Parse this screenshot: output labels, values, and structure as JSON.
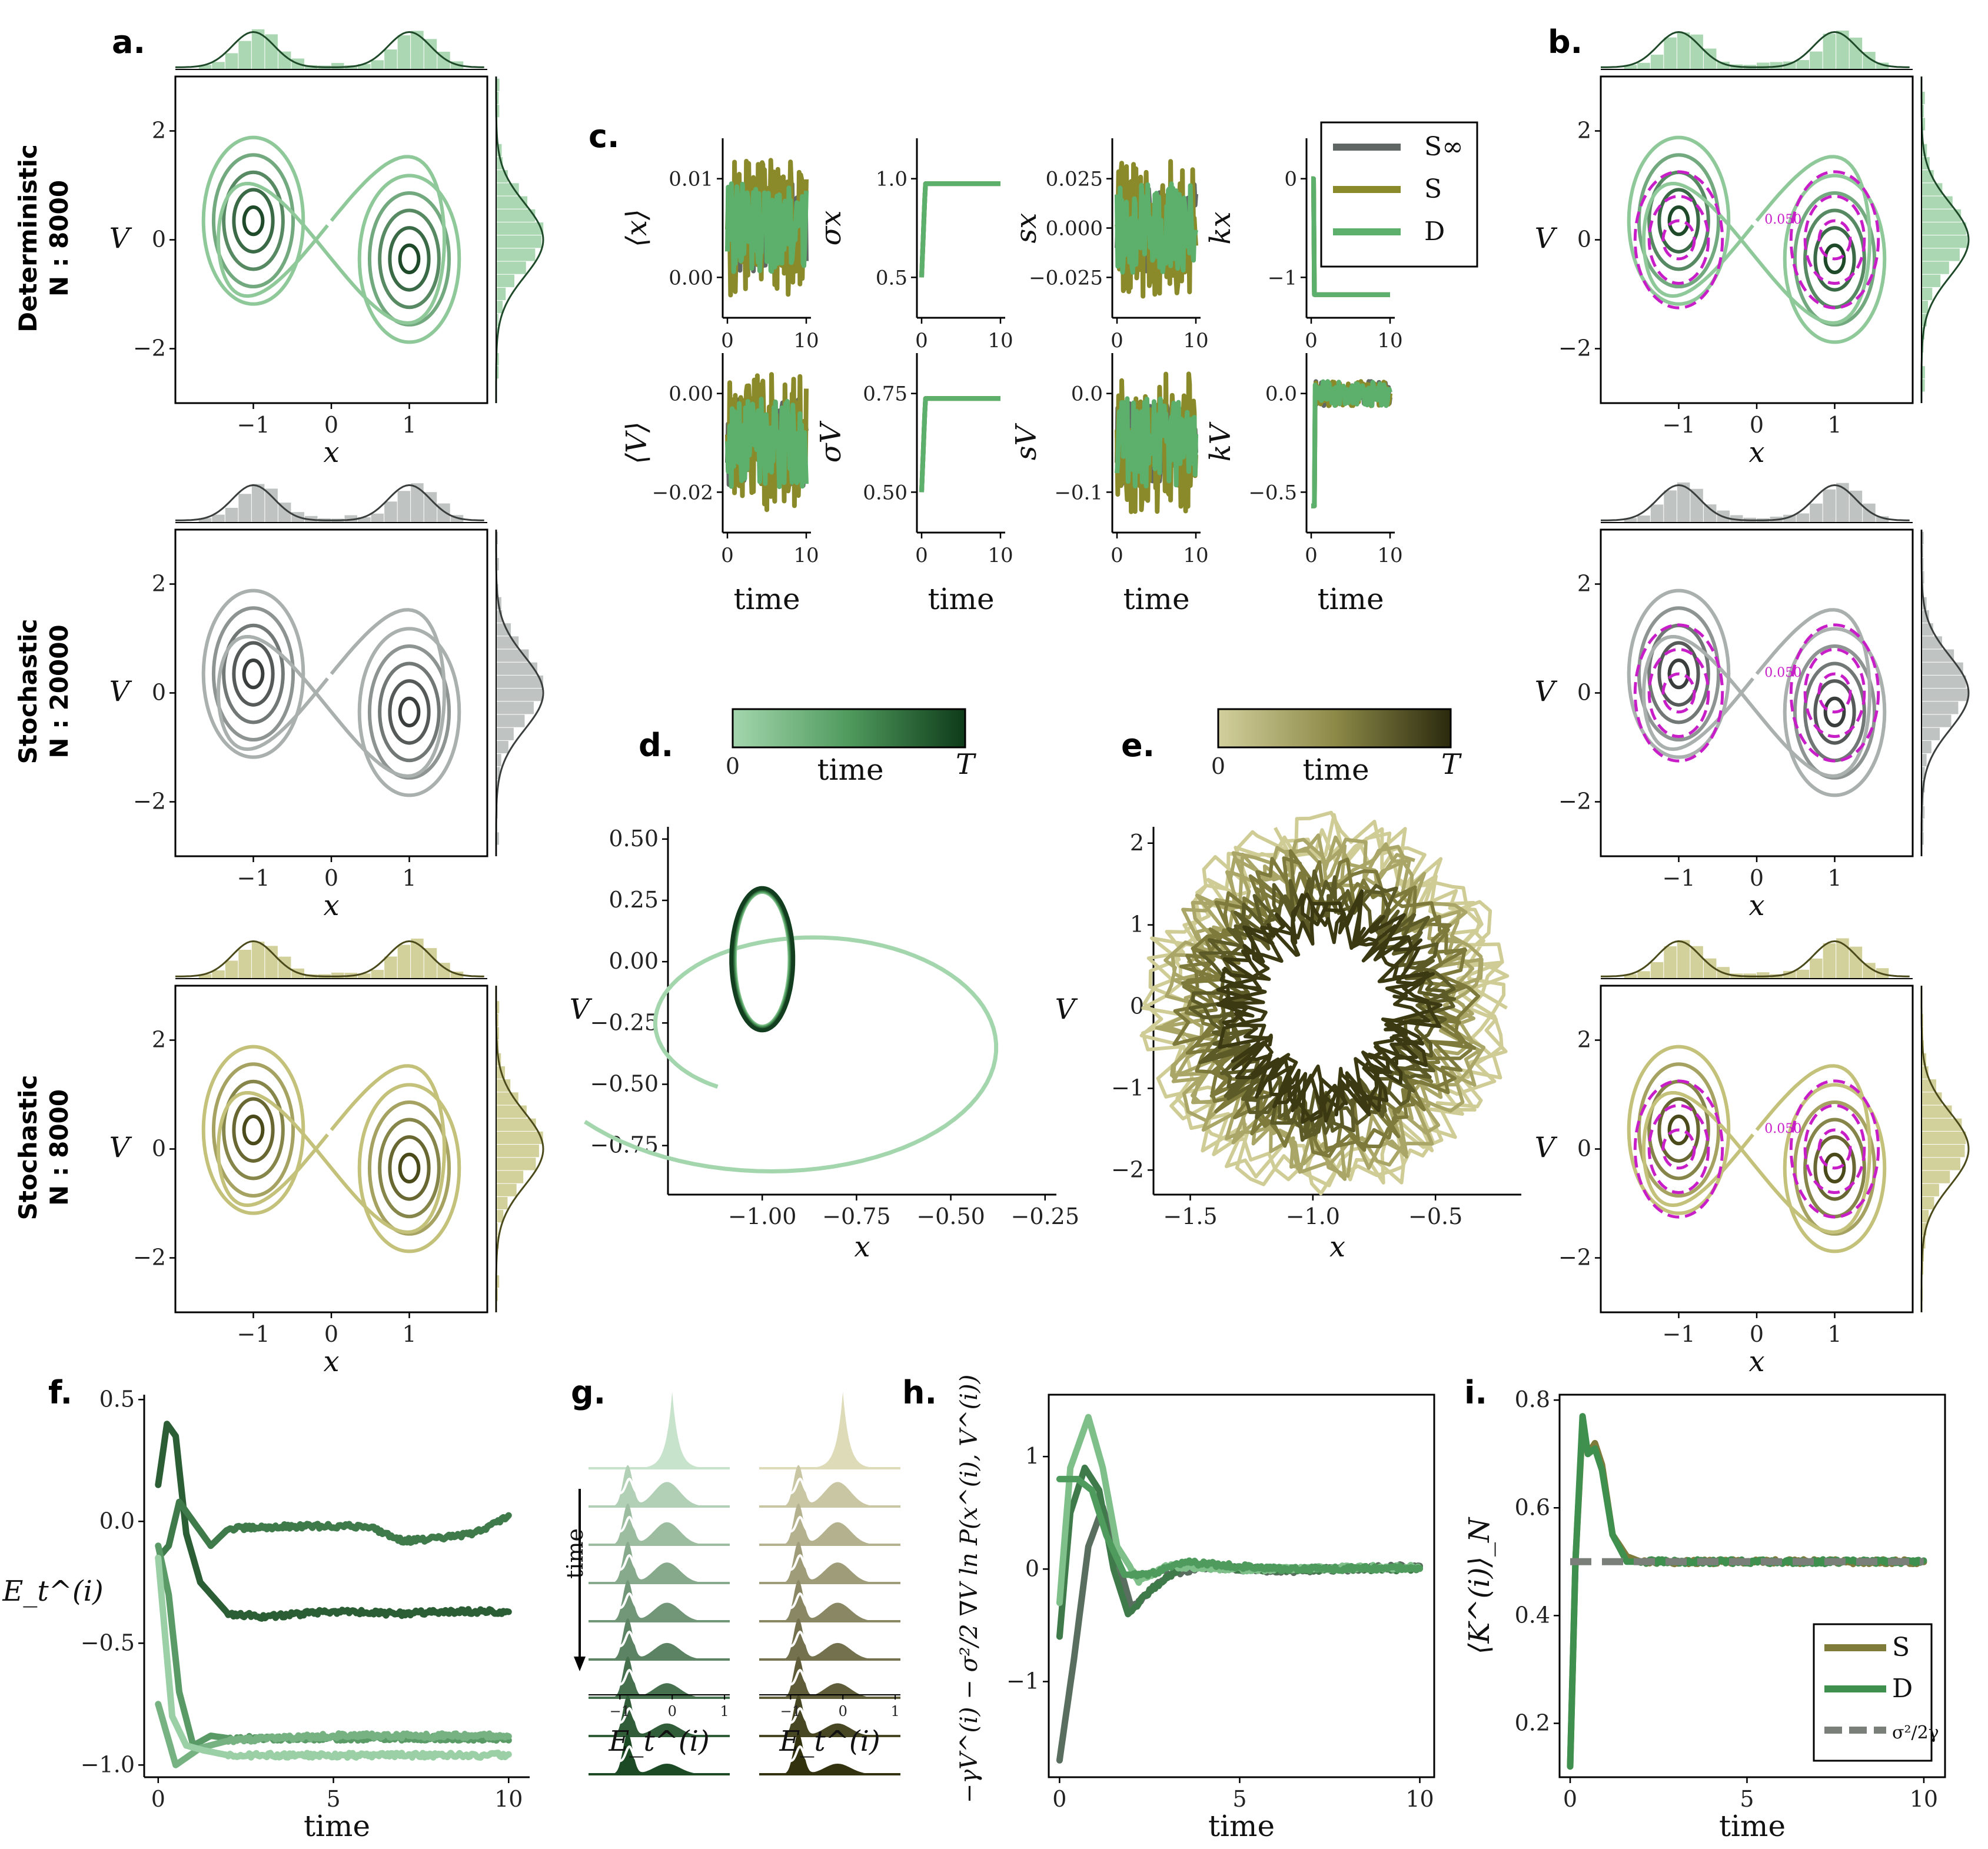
{
  "panel_letters": {
    "a": "a.",
    "b": "b.",
    "c": "c.",
    "d": "d.",
    "e": "e.",
    "f": "f.",
    "g": "g.",
    "h": "h.",
    "i": "i."
  },
  "row_labels": [
    {
      "line1": "Deterministic",
      "line2": "N : 8000"
    },
    {
      "line1": "Stochastic",
      "line2": "N : 20000"
    },
    {
      "line1": "Stochastic",
      "line2": "N : 8000"
    }
  ],
  "colors": {
    "green": "#3f8f4f",
    "green_dark": "#1f5a2d",
    "gray": "#5f6663",
    "olive": "#8a8a2a",
    "olive_dark": "#3a3a15",
    "magenta": "#c81ec8",
    "light_green": "#98cfa2"
  },
  "chart_data": [
    {
      "id": "a",
      "type": "contour",
      "rows": [
        "Deterministic N : 8000",
        "Stochastic N : 20000",
        "Stochastic N : 8000"
      ],
      "xlabel": "x",
      "ylabel": "V",
      "xticks": [
        "−1",
        "0",
        "1"
      ],
      "yticks": [
        "−2",
        "0",
        "2"
      ],
      "xlim": [
        -2,
        2
      ],
      "ylim": [
        -3,
        3
      ],
      "modes_x": [
        -1,
        1
      ],
      "marginals": "histogram + kde, bimodal in x, unimodal in V"
    },
    {
      "id": "b",
      "type": "contour",
      "xlabel": "x",
      "ylabel": "V",
      "xticks": [
        "−1",
        "0",
        "1"
      ],
      "yticks": [
        "−2",
        "0",
        "2"
      ],
      "overlay": "dashed magenta analytic contours",
      "contour_label": "0.050"
    },
    {
      "id": "c",
      "type": "line",
      "legend": [
        "S∞",
        "S",
        "D"
      ],
      "xlabel": "time",
      "xticks": [
        "0",
        "10"
      ],
      "subplots": [
        {
          "ylabel": "⟨x⟩",
          "yticks": [
            "0.00",
            "0.01"
          ]
        },
        {
          "ylabel": "σx",
          "yticks": [
            "0.5",
            "1.0"
          ]
        },
        {
          "ylabel": "sx",
          "yticks": [
            "−0.025",
            "0.000",
            "0.025"
          ]
        },
        {
          "ylabel": "kx",
          "yticks": [
            "−1",
            "0"
          ]
        },
        {
          "ylabel": "⟨V⟩",
          "yticks": [
            "−0.02",
            "0.00"
          ]
        },
        {
          "ylabel": "σV",
          "yticks": [
            "0.50",
            "0.75"
          ]
        },
        {
          "ylabel": "sV",
          "yticks": [
            "−0.1",
            "0.0"
          ]
        },
        {
          "ylabel": "kV",
          "yticks": [
            "−0.5",
            "0.0"
          ]
        }
      ]
    },
    {
      "id": "d",
      "type": "line",
      "xlabel": "x",
      "ylabel": "V",
      "colorbar": {
        "label": "time",
        "min": "0",
        "max": "T"
      },
      "xticks": [
        "−1.00",
        "−0.75",
        "−0.50",
        "−0.25"
      ],
      "yticks": [
        "−0.75",
        "−0.50",
        "−0.25",
        "0.00",
        "0.25",
        "0.50"
      ],
      "xlim": [
        -1.25,
        -0.22
      ],
      "ylim": [
        -0.95,
        0.55
      ]
    },
    {
      "id": "e",
      "type": "line",
      "xlabel": "x",
      "ylabel": "V",
      "colorbar": {
        "label": "time",
        "min": "0",
        "max": "T"
      },
      "xticks": [
        "−1.5",
        "−1.0",
        "−0.5"
      ],
      "yticks": [
        "−2",
        "−1",
        "0",
        "1",
        "2"
      ],
      "xlim": [
        -1.65,
        -0.15
      ],
      "ylim": [
        -2.3,
        2.2
      ]
    },
    {
      "id": "f",
      "type": "line",
      "xlabel": "time",
      "ylabel": "E_t^(i)",
      "xticks": [
        "0",
        "5",
        "10"
      ],
      "yticks": [
        "−1.0",
        "−0.5",
        "0.0",
        "0.5"
      ],
      "xlim": [
        -0.4,
        10.6
      ],
      "ylim": [
        -1.05,
        0.52
      ],
      "series": [
        {
          "x": [
            0,
            0.25,
            0.5,
            0.8,
            1.2,
            2,
            3,
            5,
            7,
            8,
            9,
            10
          ],
          "y": [
            0.15,
            0.4,
            0.35,
            -0.05,
            -0.25,
            -0.38,
            -0.39,
            -0.37,
            -0.38,
            -0.37,
            -0.37,
            -0.37
          ]
        },
        {
          "x": [
            0,
            0.3,
            0.6,
            0.9,
            1.5,
            2,
            4,
            6,
            7,
            8,
            9,
            10
          ],
          "y": [
            -0.15,
            -0.1,
            0.08,
            0.02,
            -0.1,
            -0.03,
            -0.02,
            -0.02,
            -0.08,
            -0.07,
            -0.05,
            0.02
          ]
        },
        {
          "x": [
            0,
            0.3,
            0.6,
            1,
            1.5,
            2,
            5,
            10
          ],
          "y": [
            -0.1,
            -0.3,
            -0.7,
            -0.92,
            -0.88,
            -0.89,
            -0.89,
            -0.89
          ]
        },
        {
          "x": [
            0,
            0.3,
            0.5,
            0.8,
            1.2,
            2,
            5,
            10
          ],
          "y": [
            -0.75,
            -0.9,
            -1.0,
            -0.97,
            -0.93,
            -0.9,
            -0.88,
            -0.88
          ]
        },
        {
          "x": [
            0,
            0.4,
            0.8,
            1.3,
            2,
            5,
            10
          ],
          "y": [
            -0.15,
            -0.8,
            -0.92,
            -0.94,
            -0.96,
            -0.96,
            -0.96
          ]
        }
      ]
    },
    {
      "id": "g",
      "type": "area",
      "xlabel": "E_t^(i)",
      "time_label": "time",
      "xticks": [
        "−1",
        "0",
        "1"
      ]
    },
    {
      "id": "h",
      "type": "line",
      "xlabel": "time",
      "ylabel": "−γV^(i) − σ²/2 ∇V ln P(x^(i), V^(i))",
      "xticks": [
        "0",
        "5",
        "10"
      ],
      "yticks": [
        "−1",
        "0",
        "1"
      ],
      "xlim": [
        -0.3,
        10.4
      ],
      "ylim": [
        -1.85,
        1.55
      ],
      "series": [
        {
          "x": [
            0,
            0.4,
            0.8,
            1.2,
            1.6,
            2,
            3,
            4,
            6,
            8,
            10
          ],
          "y": [
            -1.7,
            -0.8,
            0.2,
            0.55,
            0.1,
            -0.35,
            -0.05,
            0.02,
            -0.02,
            0.0,
            0.03
          ]
        },
        {
          "x": [
            0,
            0.3,
            0.7,
            1.1,
            1.5,
            1.9,
            2.5,
            3.5,
            5,
            7,
            10
          ],
          "y": [
            -0.6,
            0.5,
            0.9,
            0.7,
            0.0,
            -0.4,
            -0.2,
            0.05,
            0.0,
            0.0,
            0.0
          ]
        },
        {
          "x": [
            0,
            0.3,
            0.8,
            1.2,
            1.6,
            2.2,
            3,
            5,
            10
          ],
          "y": [
            -0.3,
            0.9,
            1.35,
            0.9,
            0.2,
            -0.1,
            0.03,
            0.0,
            0.02
          ]
        },
        {
          "x": [
            0,
            0.5,
            0.9,
            1.3,
            1.8,
            2.5,
            3.5,
            6,
            10
          ],
          "y": [
            0.8,
            0.8,
            0.7,
            0.3,
            -0.05,
            -0.05,
            0.06,
            0.0,
            0.01
          ]
        }
      ]
    },
    {
      "id": "i",
      "type": "line",
      "xlabel": "time",
      "ylabel": "⟨K^(i)⟩_N",
      "xticks": [
        "0",
        "5",
        "10"
      ],
      "yticks": [
        "0.2",
        "0.4",
        "0.6",
        "0.8"
      ],
      "xlim": [
        -0.3,
        10.6
      ],
      "ylim": [
        0.1,
        0.81
      ],
      "legend": [
        "S",
        "D",
        "σ²/2γ"
      ],
      "series": [
        {
          "name": "S",
          "x": [
            0,
            0.15,
            0.35,
            0.5,
            0.7,
            0.9,
            1.2,
            1.6,
            2,
            3,
            5,
            7,
            10
          ],
          "y": [
            0.12,
            0.5,
            0.76,
            0.7,
            0.72,
            0.68,
            0.55,
            0.51,
            0.5,
            0.5,
            0.5,
            0.5,
            0.5
          ]
        },
        {
          "name": "D",
          "x": [
            0,
            0.15,
            0.35,
            0.5,
            0.7,
            0.9,
            1.2,
            1.6,
            2,
            3,
            5,
            7,
            10
          ],
          "y": [
            0.12,
            0.5,
            0.77,
            0.7,
            0.71,
            0.67,
            0.55,
            0.5,
            0.5,
            0.5,
            0.5,
            0.5,
            0.5
          ]
        },
        {
          "name": "σ²/2γ",
          "x": [
            0,
            10
          ],
          "y": [
            0.5,
            0.5
          ]
        }
      ]
    }
  ]
}
